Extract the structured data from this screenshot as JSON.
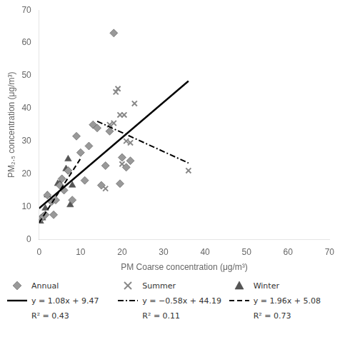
{
  "chart_data": {
    "type": "scatter",
    "xlabel": "PM Coarse concentration (μg/m³)",
    "ylabel": "PM₂.₅ concentration (μg/m³)",
    "xlim": [
      0,
      70
    ],
    "ylim": [
      0,
      70
    ],
    "xticks": [
      0,
      10,
      20,
      30,
      40,
      50,
      60,
      70
    ],
    "yticks": [
      0,
      10,
      20,
      30,
      40,
      50,
      60,
      70
    ],
    "grid": false,
    "legend": "bottom",
    "series": [
      {
        "name": "Annual",
        "type": "scatter",
        "marker": "diamond",
        "color": "#999999",
        "x": [
          0.5,
          1.0,
          1.5,
          2.0,
          3.0,
          3.5,
          4.0,
          5.0,
          5.5,
          6.0,
          7.0,
          8.0,
          9.0,
          10.0,
          11.0,
          12.0,
          13.0,
          14.0,
          15.0,
          16.0,
          17.0,
          18.0,
          19.5,
          20.0,
          21.0,
          22.0
        ],
        "values": [
          6.5,
          7.0,
          7.5,
          13.5,
          11.5,
          7.5,
          12.0,
          16.5,
          18.5,
          15.0,
          21.0,
          12.0,
          31.5,
          26.5,
          18.0,
          28.5,
          35.0,
          34.0,
          16.5,
          22.5,
          33.0,
          63.0,
          17.0,
          25.0,
          22.0,
          24.0
        ]
      },
      {
        "name": "Summer",
        "type": "scatter",
        "marker": "x",
        "color": "#888888",
        "x": [
          16.0,
          17.0,
          18.0,
          18.5,
          19.0,
          19.5,
          20.0,
          20.5,
          21.0,
          22.0,
          23.0,
          36.0
        ],
        "values": [
          15.5,
          35.0,
          35.5,
          45.0,
          46.0,
          38.0,
          23.0,
          38.0,
          30.0,
          29.5,
          41.5,
          21.0
        ]
      },
      {
        "name": "Winter",
        "type": "scatter",
        "marker": "triangle",
        "color": "#555555",
        "x": [
          0.3,
          0.8,
          1.5,
          2.0,
          4.5,
          5.0,
          6.5,
          7.0,
          7.5,
          8.0
        ],
        "values": [
          5.5,
          6.5,
          9.5,
          13.5,
          17.0,
          17.0,
          21.5,
          24.5,
          10.5,
          16.5
        ]
      },
      {
        "name": "y = 1.08x + 9.47",
        "type": "line",
        "line_style": "solid",
        "color": "#000000",
        "x": [
          0,
          36
        ],
        "values": [
          9.47,
          48.35
        ]
      },
      {
        "name": "y = −0.58x + 44.19",
        "type": "line",
        "line_style": "dashdot",
        "color": "#000000",
        "x": [
          14,
          36
        ],
        "values": [
          36.07,
          23.31
        ]
      },
      {
        "name": "y = 1.96x + 5.08",
        "type": "line",
        "line_style": "dashed",
        "color": "#000000",
        "x": [
          0,
          10
        ],
        "values": [
          5.08,
          24.68
        ]
      }
    ],
    "annotations": [
      "R² = 0.43",
      "R² = 0.11",
      "R² = 0.73"
    ]
  }
}
